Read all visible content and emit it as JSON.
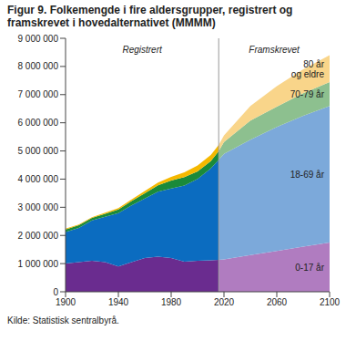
{
  "chart_data": [
    {
      "type": "area",
      "title": "Figur 9. Folkemengde i fire aldersgrupper, registrert og framskrevet i hovedalternativet (MMMM)",
      "source": "Kilde: Statistisk sentralbyrå.",
      "annotation": "Registrert",
      "stacked": true,
      "grid": false,
      "xlim": [
        1900,
        2100
      ],
      "xticks": [
        1900,
        1940,
        1980,
        2020,
        2060,
        2100
      ],
      "ylim": [
        0,
        9000000
      ],
      "yticks": [
        0,
        {
          "value": 1000000,
          "label": "1 000 000"
        },
        {
          "value": 2000000,
          "label": "2 000 000"
        },
        {
          "value": 3000000,
          "label": "3 000 000"
        },
        {
          "value": 4000000,
          "label": "4 000 000"
        },
        {
          "value": 5000000,
          "label": "5 000 000"
        },
        {
          "value": 6000000,
          "label": "6 000 000"
        },
        {
          "value": 7000000,
          "label": "7 000 000"
        },
        {
          "value": 8000000,
          "label": "8 000 000"
        },
        {
          "value": 9000000,
          "label": "9 000 000"
        }
      ],
      "x": [
        1900,
        1910,
        1920,
        1930,
        1940,
        1950,
        1960,
        1970,
        1980,
        1990,
        2000,
        2010,
        2016
      ],
      "series": [
        {
          "name": "0-17 år",
          "color": "#6a2c8f",
          "values": [
            1000000,
            1050000,
            1100000,
            1050000,
            900000,
            1050000,
            1200000,
            1250000,
            1200000,
            1070000,
            1100000,
            1120000,
            1130000
          ]
        },
        {
          "name": "18-69 år",
          "color": "#0b6cc0",
          "values": [
            1120000,
            1220000,
            1430000,
            1610000,
            1890000,
            2020000,
            2110000,
            2300000,
            2470000,
            2700000,
            2910000,
            3260000,
            3560000
          ]
        },
        {
          "name": "70-79 år",
          "color": "#1a8a3a",
          "values": [
            90000,
            90000,
            90000,
            110000,
            130000,
            150000,
            190000,
            230000,
            280000,
            300000,
            260000,
            260000,
            300000
          ]
        },
        {
          "name": "80 år og eldre",
          "color": "#f5b800",
          "values": [
            30000,
            30000,
            30000,
            40000,
            50000,
            60000,
            80000,
            100000,
            130000,
            170000,
            210000,
            220000,
            220000
          ]
        }
      ]
    },
    {
      "type": "area",
      "annotation": "Framskrevet",
      "stacked": true,
      "x": [
        2016,
        2020,
        2040,
        2060,
        2080,
        2100
      ],
      "series": [
        {
          "name": "0-17 år",
          "color": "#b07cc0",
          "values": [
            1130000,
            1150000,
            1300000,
            1450000,
            1600000,
            1750000
          ]
        },
        {
          "name": "18-69 år",
          "color": "#7ca9da",
          "values": [
            3560000,
            3750000,
            4100000,
            4400000,
            4650000,
            4850000
          ]
        },
        {
          "name": "70-79 år",
          "color": "#8dc08f",
          "values": [
            300000,
            420000,
            680000,
            720000,
            800000,
            850000
          ]
        },
        {
          "name": "80 år og eldre",
          "color": "#f9d58a",
          "values": [
            220000,
            230000,
            520000,
            730000,
            850000,
            950000
          ]
        }
      ]
    }
  ]
}
